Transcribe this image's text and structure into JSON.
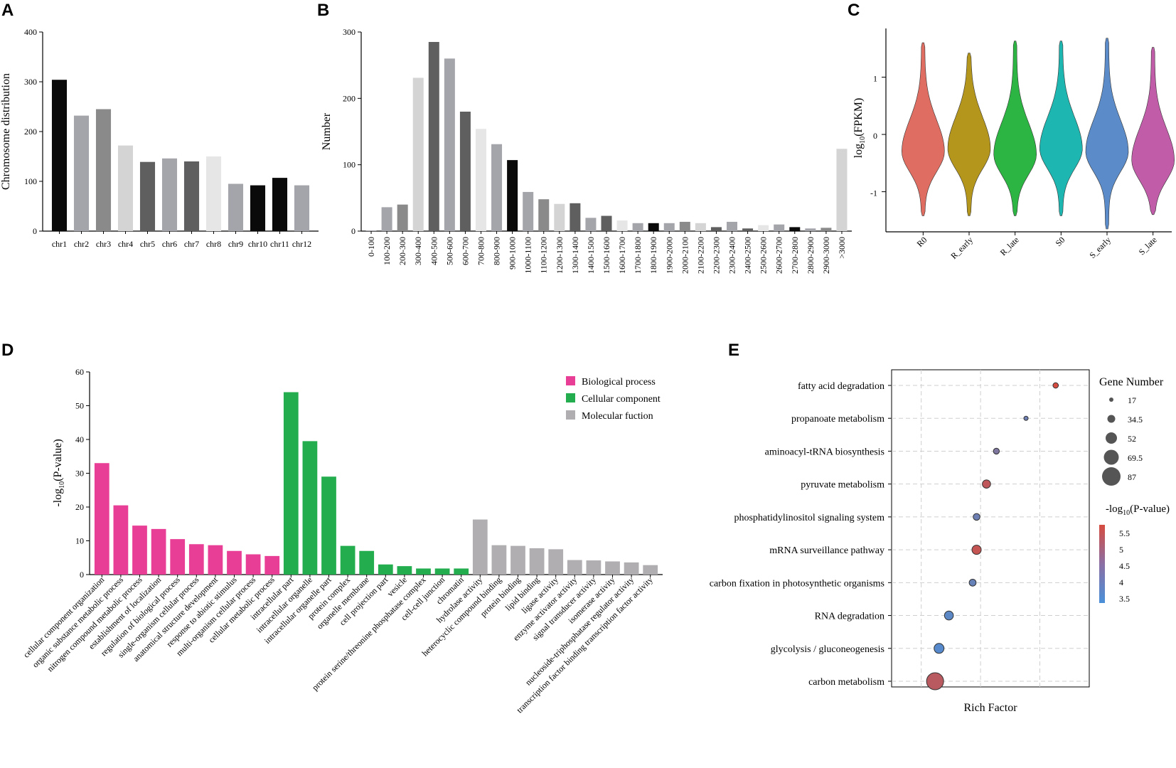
{
  "chart_data": [
    {
      "panel": "A",
      "type": "bar",
      "ylabel": "Chromosome distribution",
      "ylim": [
        0,
        400
      ],
      "yticks": [
        0,
        100,
        200,
        300,
        400
      ],
      "categories": [
        "chr1",
        "chr2",
        "chr3",
        "chr4",
        "chr5",
        "chr6",
        "chr7",
        "chr8",
        "chr9",
        "chr10",
        "chr11",
        "chr12"
      ],
      "values": [
        304,
        232,
        245,
        172,
        139,
        146,
        140,
        150,
        95,
        92,
        107,
        92
      ],
      "colors": [
        "#0a0a0a",
        "#a4a4ab",
        "#8a8a8a",
        "#d4d4d4",
        "#5f5f5f",
        "#a4a4ab",
        "#5f5f5f",
        "#e6e6e6",
        "#a4a4ab",
        "#0a0a0a",
        "#0a0a0a",
        "#a4a4ab"
      ]
    },
    {
      "panel": "B",
      "type": "bar",
      "ylabel": "Number",
      "ylim": [
        0,
        300
      ],
      "yticks": [
        0,
        100,
        200,
        300
      ],
      "categories": [
        "0-100",
        "100-200",
        "200-300",
        "300-400",
        "400-500",
        "500-600",
        "600-700",
        "700-800",
        "800-900",
        "900-1000",
        "1000-1100",
        "1100-1200",
        "1200-1300",
        "1300-1400",
        "1400-1500",
        "1500-1600",
        "1600-1700",
        "1700-1800",
        "1800-1900",
        "1900-2000",
        "2000-2100",
        "2100-2200",
        "2200-2300",
        "2300-2400",
        "2400-2500",
        "2500-2600",
        "2600-2700",
        "2700-2800",
        "2800-2900",
        "2900-3000",
        ">3000"
      ],
      "values": [
        1,
        36,
        40,
        231,
        285,
        260,
        180,
        154,
        131,
        107,
        59,
        48,
        41,
        42,
        20,
        23,
        16,
        12,
        12,
        12,
        14,
        12,
        6,
        14,
        4,
        9,
        10,
        6,
        4,
        5,
        124
      ],
      "colors": [
        "#a4a4ab",
        "#a4a4ab",
        "#8a8a8a",
        "#d4d4d4",
        "#5f5f5f",
        "#a4a4ab",
        "#5f5f5f",
        "#e6e6e6",
        "#a4a4ab",
        "#0a0a0a",
        "#a4a4ab",
        "#8a8a8a",
        "#d4d4d4",
        "#5f5f5f",
        "#a4a4ab",
        "#5f5f5f",
        "#e6e6e6",
        "#a4a4ab",
        "#0a0a0a",
        "#a4a4ab",
        "#8a8a8a",
        "#d4d4d4",
        "#5f5f5f",
        "#a4a4ab",
        "#5f5f5f",
        "#e6e6e6",
        "#a4a4ab",
        "#0a0a0a",
        "#a4a4ab",
        "#8a8a8a",
        "#d4d4d4"
      ]
    },
    {
      "panel": "C",
      "type": "violin",
      "ylabel_base": "log",
      "ylabel_sub": "10",
      "ylabel_rest": "(FPKM)",
      "yticks": [
        -1,
        0,
        1
      ],
      "ylim": [
        -1.7,
        1.85
      ],
      "groups": [
        {
          "name": "R0",
          "color": "#e06d61",
          "min": -1.42,
          "max": 1.6,
          "mode": -0.3,
          "w": [
            0.05,
            0.45,
            0.95,
            0.7,
            0.35,
            0.15,
            0.07
          ]
        },
        {
          "name": "R_early",
          "color": "#b5961d",
          "min": -1.42,
          "max": 1.42,
          "mode": -0.25,
          "w": [
            0.05,
            0.4,
            0.95,
            0.7,
            0.35,
            0.15,
            0.07
          ]
        },
        {
          "name": "R_late",
          "color": "#2db543",
          "min": -1.42,
          "max": 1.63,
          "mode": -0.35,
          "w": [
            0.05,
            0.45,
            0.95,
            0.75,
            0.4,
            0.18,
            0.07
          ]
        },
        {
          "name": "S0",
          "color": "#1eb6b0",
          "min": -1.42,
          "max": 1.63,
          "mode": -0.25,
          "w": [
            0.05,
            0.35,
            1.0,
            0.65,
            0.3,
            0.12,
            0.06
          ]
        },
        {
          "name": "S_early",
          "color": "#5b8cc9",
          "min": -1.65,
          "max": 1.68,
          "mode": -0.3,
          "w": [
            0.04,
            0.4,
            0.95,
            0.75,
            0.4,
            0.18,
            0.07
          ]
        },
        {
          "name": "S_late",
          "color": "#c15ca8",
          "min": -1.4,
          "max": 1.52,
          "mode": -0.45,
          "w": [
            0.05,
            0.45,
            0.9,
            0.6,
            0.35,
            0.15,
            0.06
          ]
        }
      ]
    },
    {
      "panel": "D",
      "type": "bar",
      "ylabel_base": "-log",
      "ylabel_sub": "10",
      "ylabel_rest": "(P-value)",
      "ylim": [
        0,
        60
      ],
      "yticks": [
        0,
        10,
        20,
        30,
        40,
        50,
        60
      ],
      "legend": [
        {
          "label": "Biological process",
          "color": "#e83e95"
        },
        {
          "label": "Cellular component",
          "color": "#23ad4f"
        },
        {
          "label": "Molecular fuction",
          "color": "#b0aeb0"
        }
      ],
      "categories": [
        "cellular component organization",
        "organic substance metabolic process",
        "nitrogen compound metabolic process",
        "establishment of localization",
        "regulation of biological process",
        "single-organism cellular process",
        "anatomical structure development",
        "response to abiotic stimulus",
        "multi-organism cellular process",
        "cellular metabolic process",
        "intracellular part",
        "intracellular organelle",
        "intracellular organelle part",
        "protein complex",
        "organelle membrane",
        "cell projection part",
        "vesicle",
        "protein serine/threonine phosphatase complex",
        "cell-cell junction",
        "chromatin",
        "hydrolase activity",
        "heterocyclic compound binding",
        "protein binding",
        "lipid binding",
        "ligase activity",
        "enzyme activator activity",
        "signal transducer activity",
        "isomerase activity",
        "nucleoside-triphosphatase regulator activity",
        "transcription factor binding transcription factor activity"
      ],
      "values": [
        33,
        20.5,
        14.5,
        13.5,
        10.5,
        9,
        8.7,
        7,
        6,
        5.5,
        54,
        39.5,
        29,
        8.5,
        7,
        3,
        2.5,
        1.8,
        1.8,
        1.8,
        16.3,
        8.7,
        8.5,
        7.8,
        7.5,
        4.3,
        4.2,
        3.9,
        3.6,
        2.8
      ],
      "groups": [
        0,
        0,
        0,
        0,
        0,
        0,
        0,
        0,
        0,
        0,
        1,
        1,
        1,
        1,
        1,
        1,
        1,
        1,
        1,
        1,
        2,
        2,
        2,
        2,
        2,
        2,
        2,
        2,
        2,
        2
      ]
    },
    {
      "panel": "E",
      "type": "scatter",
      "xlabel": "Rich Factor",
      "size_legend_title": "Gene Number",
      "size_legend": [
        "17",
        "34.5",
        "52",
        "69.5",
        "87"
      ],
      "color_legend_title_base": "-log",
      "color_legend_title_sub": "10",
      "color_legend_title_rest": "(P-value)",
      "color_legend": [
        "5.5",
        "5",
        "4.5",
        "4",
        "3.5"
      ],
      "color_range": [
        3.3,
        5.7
      ],
      "xlim": [
        0,
        1
      ],
      "points": [
        {
          "term": "fatty acid degradation",
          "x": 0.83,
          "genes": 17,
          "p": 5.7
        },
        {
          "term": "propanoate metabolism",
          "x": 0.68,
          "genes": 10,
          "p": 3.9
        },
        {
          "term": "aminoacyl-tRNA biosynthesis",
          "x": 0.53,
          "genes": 20,
          "p": 4.2
        },
        {
          "term": "pyruvate metabolism",
          "x": 0.48,
          "genes": 34,
          "p": 5.3
        },
        {
          "term": "phosphatidylinositol signaling system",
          "x": 0.43,
          "genes": 25,
          "p": 3.9
        },
        {
          "term": "mRNA surveillance pathway",
          "x": 0.43,
          "genes": 40,
          "p": 5.4
        },
        {
          "term": "carbon fixation in photosynthetic organisms",
          "x": 0.41,
          "genes": 26,
          "p": 3.8
        },
        {
          "term": "RNA degradation",
          "x": 0.29,
          "genes": 38,
          "p": 3.6
        },
        {
          "term": "glycolysis / gluconeogenesis",
          "x": 0.24,
          "genes": 44,
          "p": 3.5
        },
        {
          "term": "carbon metabolism",
          "x": 0.22,
          "genes": 87,
          "p": 5.2
        }
      ]
    }
  ],
  "panel_labels": [
    "A",
    "B",
    "C",
    "D",
    "E"
  ]
}
